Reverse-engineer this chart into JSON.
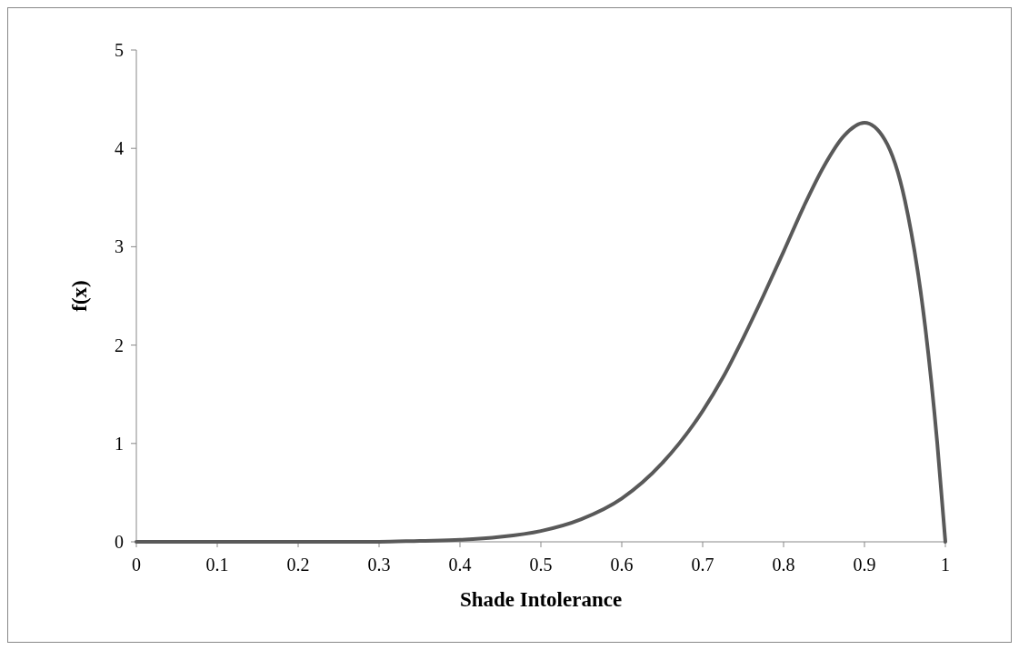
{
  "chart_data": {
    "type": "line",
    "xlabel": "Shade Intolerance",
    "ylabel": "f(x)",
    "x": [
      0,
      0.1,
      0.2,
      0.3,
      0.35,
      0.4,
      0.45,
      0.5,
      0.55,
      0.6,
      0.65,
      0.7,
      0.725,
      0.75,
      0.775,
      0.8,
      0.825,
      0.85,
      0.875,
      0.9,
      0.925,
      0.95,
      0.975,
      0.99,
      1
    ],
    "series": [
      {
        "color": "#595959",
        "values": [
          0,
          0,
          0,
          0,
          0.01,
          0.02,
          0.05,
          0.11,
          0.23,
          0.44,
          0.8,
          1.33,
          1.67,
          2.07,
          2.5,
          2.95,
          3.41,
          3.82,
          4.13,
          4.26,
          4.09,
          3.47,
          2.19,
          1.0,
          0
        ]
      }
    ],
    "xlim": [
      0,
      1
    ],
    "xticks": [
      0,
      0.1,
      0.2,
      0.3,
      0.4,
      0.5,
      0.6,
      0.7,
      0.8,
      0.9,
      1
    ],
    "ylim": [
      0,
      5
    ],
    "yticks": [
      0,
      1,
      2,
      3,
      4,
      5
    ],
    "grid": false,
    "marker": "none",
    "line_style": "solid"
  }
}
